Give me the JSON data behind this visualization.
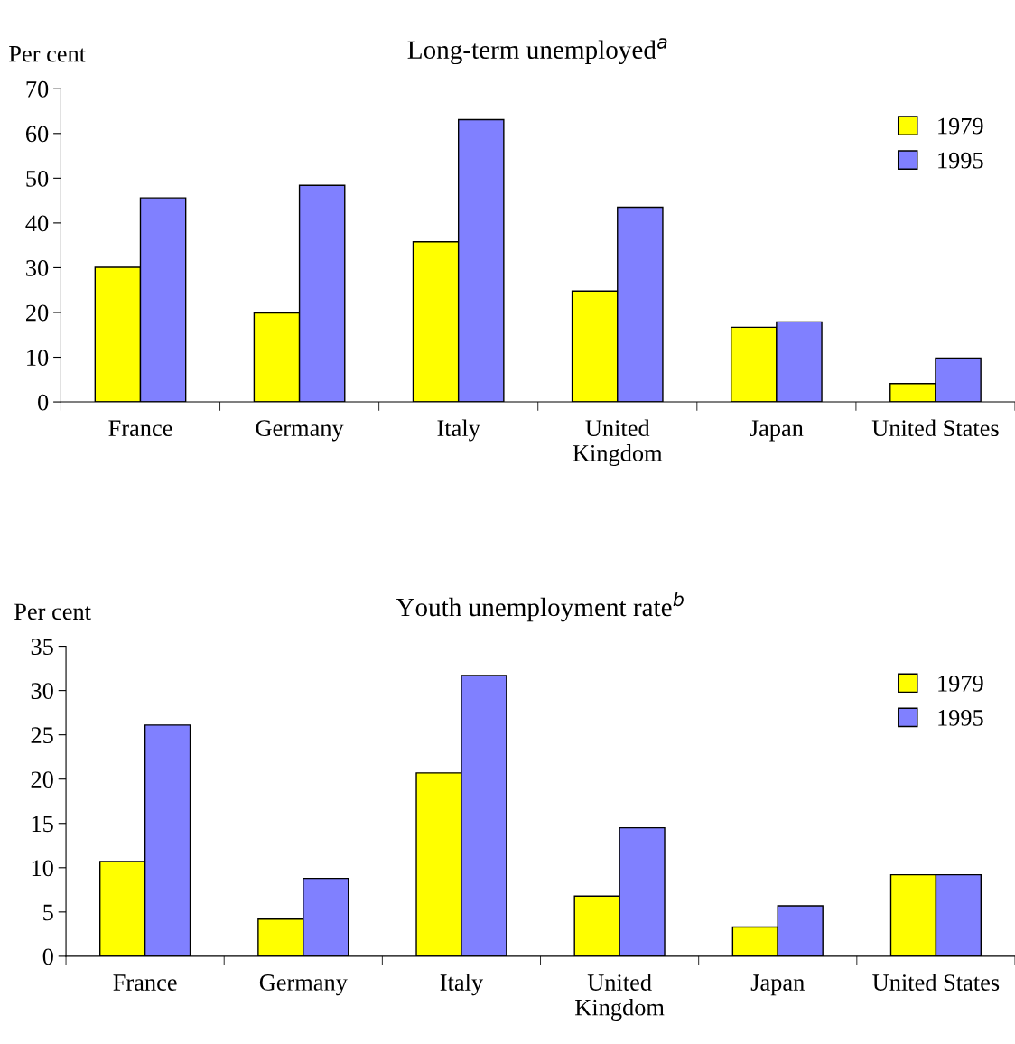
{
  "chart_data": [
    {
      "type": "bar",
      "title": "Long-term unemployed$^{a}$",
      "ylabel": "Per cent",
      "categories": [
        "France",
        "Germany",
        "Italy",
        "United\nKingdom",
        "Japan",
        "United States"
      ],
      "series": [
        {
          "name": "1979",
          "color": "#ffff00",
          "values": [
            30.1,
            19.9,
            35.8,
            24.8,
            16.7,
            4.1
          ]
        },
        {
          "name": "1995",
          "color": "#8080ff",
          "values": [
            45.6,
            48.4,
            63.1,
            43.5,
            17.9,
            9.8
          ]
        }
      ],
      "ylim": [
        0,
        70
      ],
      "yticks": [
        0,
        10,
        20,
        30,
        40,
        50,
        60,
        70
      ],
      "grid": false,
      "legend": "top right"
    },
    {
      "type": "bar",
      "title": "Youth unemployment rate$^{b}$",
      "ylabel": "Per cent",
      "categories": [
        "France",
        "Germany",
        "Italy",
        "United\nKingdom",
        "Japan",
        "United States"
      ],
      "series": [
        {
          "name": "1979",
          "color": "#ffff00",
          "values": [
            10.7,
            4.2,
            20.7,
            6.8,
            3.3,
            9.2
          ]
        },
        {
          "name": "1995",
          "color": "#8080ff",
          "values": [
            26.1,
            8.8,
            31.7,
            14.5,
            5.7,
            9.2
          ]
        }
      ],
      "ylim": [
        0,
        35
      ],
      "yticks": [
        0,
        5,
        10,
        15,
        20,
        25,
        30,
        35
      ],
      "grid": false,
      "legend": "top right"
    }
  ]
}
